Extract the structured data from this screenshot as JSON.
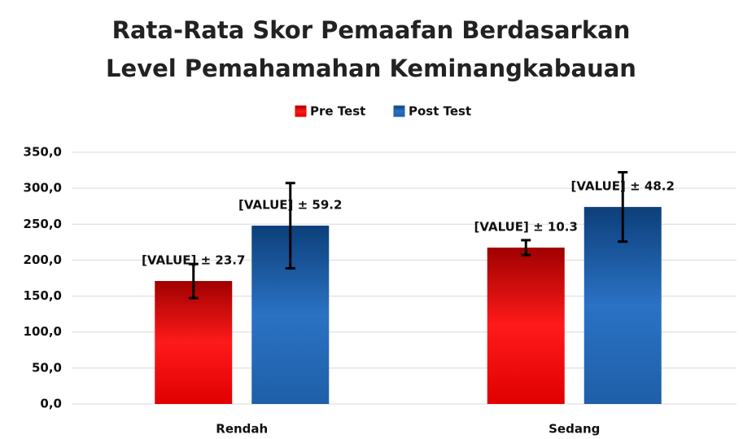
{
  "chart_data": {
    "type": "bar",
    "title": "Rata-Rata Skor Pemaafan Berdasarkan Level Pemahamahan Keminangkabauan",
    "categories": [
      "Rendah",
      "Sedang"
    ],
    "series": [
      {
        "name": "Pre Test",
        "color": "#e00000",
        "values": [
          171,
          217.5
        ],
        "errors": [
          23.7,
          10.3
        ],
        "value_labels": [
          "[VALUE] ± 23.7",
          "[VALUE] ± 10.3"
        ]
      },
      {
        "name": "Post Test",
        "color": "#1f5fa8",
        "values": [
          248,
          274
        ],
        "errors": [
          59.2,
          48.2
        ],
        "value_labels": [
          "[VALUE] ± 59.2",
          "[VALUE] ± 48.2"
        ]
      }
    ],
    "ylim": [
      0,
      350
    ],
    "yticks": [
      {
        "value": 0,
        "label": "0,0"
      },
      {
        "value": 50,
        "label": "50,0"
      },
      {
        "value": 100,
        "label": "100,0"
      },
      {
        "value": 150,
        "label": "150,0"
      },
      {
        "value": 200,
        "label": "200,0"
      },
      {
        "value": 250,
        "label": "250,0"
      },
      {
        "value": 300,
        "label": "300,0"
      },
      {
        "value": 350,
        "label": "350,0"
      }
    ],
    "grid": true,
    "legend": "top"
  }
}
